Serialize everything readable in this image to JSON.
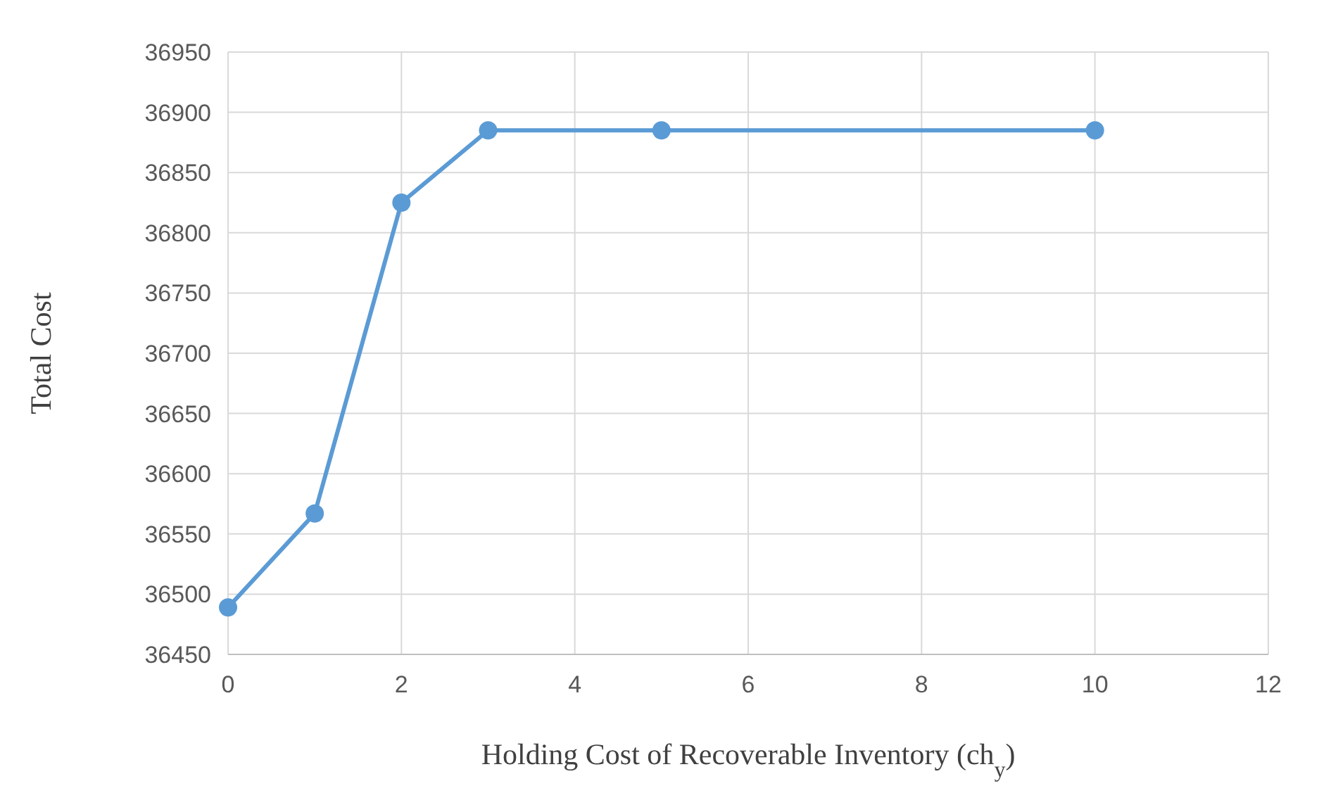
{
  "chart_data": {
    "type": "line",
    "xlabel": "Holding Cost of Recoverable Inventory (ch$_{y}$)",
    "ylabel": "Total Cost",
    "x": [
      0,
      1,
      2,
      3,
      5,
      10
    ],
    "series": [
      {
        "color": "#5b9bd5",
        "values": [
          36489,
          36567,
          36825,
          36885,
          36885,
          36885
        ]
      }
    ],
    "xlim": [
      0,
      12
    ],
    "xticks": [
      0,
      2,
      4,
      6,
      8,
      10,
      12
    ],
    "ylim": [
      36450,
      36950
    ],
    "yticks": [
      36450,
      36500,
      36550,
      36600,
      36650,
      36700,
      36750,
      36800,
      36850,
      36900,
      36950
    ],
    "grid": true,
    "marker": "circle",
    "line_style": "solid"
  }
}
